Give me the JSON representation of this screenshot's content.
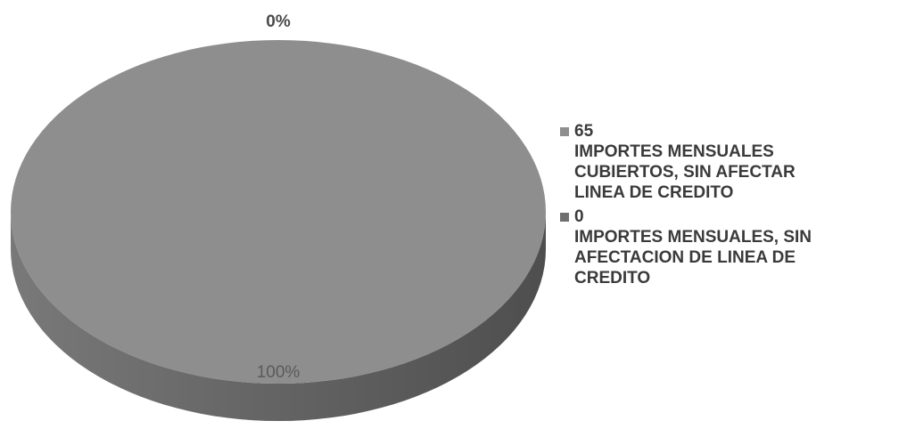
{
  "chart_data": {
    "type": "pie",
    "categories": [
      "65\nIMPORTES MENSUALES\nCUBIERTOS, SIN AFECTAR\nLINEA DE CREDITO",
      "0\nIMPORTES MENSUALES, SIN\nAFECTACION DE LINEA DE\nCREDITO"
    ],
    "values": [
      100,
      0
    ],
    "value_labels": [
      "100%",
      "0%"
    ],
    "colors": [
      "#8e8e8e",
      "#6f6f6f"
    ],
    "three_d": true,
    "legend": "right"
  }
}
